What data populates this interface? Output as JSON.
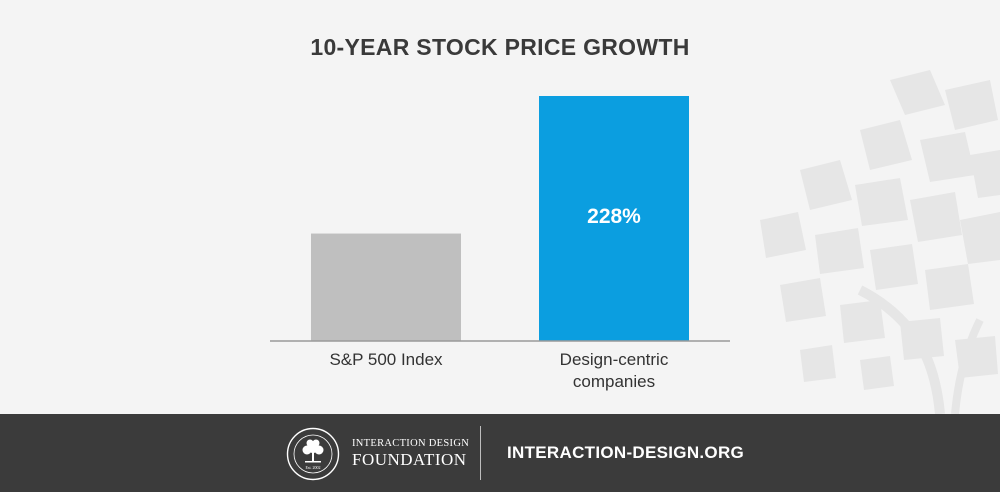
{
  "chart_data": {
    "type": "bar",
    "title": "10-YEAR STOCK PRICE GROWTH",
    "categories": [
      "S&P 500 Index",
      "Design-centric companies"
    ],
    "category_lines": [
      [
        "S&P 500 Index"
      ],
      [
        "Design-centric",
        "companies"
      ]
    ],
    "values": [
      100,
      228
    ],
    "data_labels": [
      "",
      "228%"
    ],
    "colors": [
      "#bfbfbf",
      "#0b9ee0"
    ],
    "ylim": [
      0,
      228
    ],
    "grid": false
  },
  "footer": {
    "logo_line1": "INTERACTION DESIGN",
    "logo_line2": "FOUNDATION",
    "seal_text": "INTERACTION DESIGN FOUNDATION · Est. 2002",
    "website": "INTERACTION-DESIGN.ORG"
  },
  "colors": {
    "background": "#f4f4f4",
    "footer": "#3b3b3b",
    "accent": "#0b9ee0",
    "muted_bar": "#bfbfbf"
  }
}
